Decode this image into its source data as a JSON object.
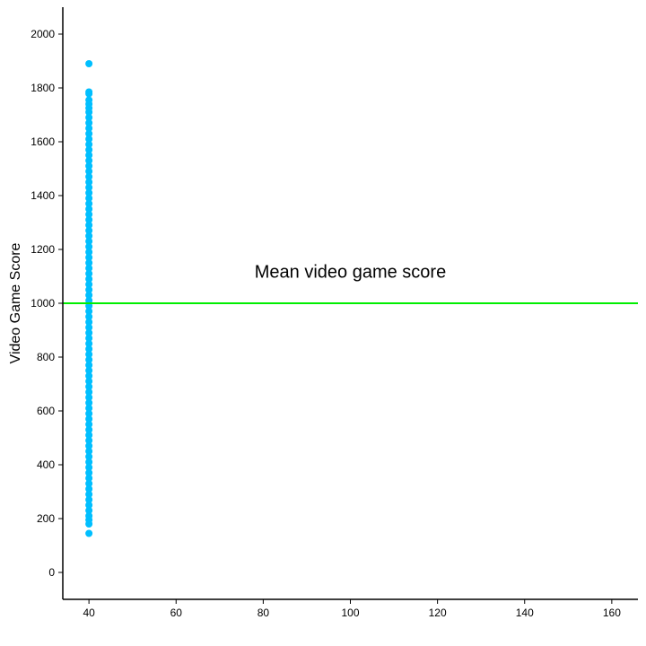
{
  "colors": {
    "background": "#ffffff",
    "points": "#00bfff",
    "reference_line": "#00ee00",
    "axis": "#000000"
  },
  "chart_data": {
    "type": "scatter",
    "title": "",
    "xlabel": "",
    "ylabel": "Video Game Score",
    "xlim": [
      34,
      166
    ],
    "ylim": [
      -100,
      2100
    ],
    "x_ticks": [
      40,
      60,
      80,
      100,
      120,
      140,
      160
    ],
    "y_ticks": [
      0,
      200,
      400,
      600,
      800,
      1000,
      1200,
      1400,
      1600,
      1800,
      2000
    ],
    "grid": false,
    "legend": "none",
    "series": [
      {
        "points": [
          {
            "x": 40,
            "y": 1890
          },
          {
            "x": 40,
            "y": 1785
          },
          {
            "x": 40,
            "y": 1778
          },
          {
            "x": 40,
            "y": 1755
          },
          {
            "x": 40,
            "y": 1740
          },
          {
            "x": 40,
            "y": 1725
          },
          {
            "x": 40,
            "y": 1710
          },
          {
            "x": 40,
            "y": 1690
          },
          {
            "x": 40,
            "y": 1670
          },
          {
            "x": 40,
            "y": 1650
          },
          {
            "x": 40,
            "y": 1630
          },
          {
            "x": 40,
            "y": 1610
          },
          {
            "x": 40,
            "y": 1590
          },
          {
            "x": 40,
            "y": 1570
          },
          {
            "x": 40,
            "y": 1550
          },
          {
            "x": 40,
            "y": 1530
          },
          {
            "x": 40,
            "y": 1510
          },
          {
            "x": 40,
            "y": 1490
          },
          {
            "x": 40,
            "y": 1470
          },
          {
            "x": 40,
            "y": 1450
          },
          {
            "x": 40,
            "y": 1430
          },
          {
            "x": 40,
            "y": 1410
          },
          {
            "x": 40,
            "y": 1390
          },
          {
            "x": 40,
            "y": 1370
          },
          {
            "x": 40,
            "y": 1350
          },
          {
            "x": 40,
            "y": 1330
          },
          {
            "x": 40,
            "y": 1310
          },
          {
            "x": 40,
            "y": 1290
          },
          {
            "x": 40,
            "y": 1270
          },
          {
            "x": 40,
            "y": 1250
          },
          {
            "x": 40,
            "y": 1230
          },
          {
            "x": 40,
            "y": 1210
          },
          {
            "x": 40,
            "y": 1190
          },
          {
            "x": 40,
            "y": 1170
          },
          {
            "x": 40,
            "y": 1150
          },
          {
            "x": 40,
            "y": 1130
          },
          {
            "x": 40,
            "y": 1110
          },
          {
            "x": 40,
            "y": 1090
          },
          {
            "x": 40,
            "y": 1070
          },
          {
            "x": 40,
            "y": 1050
          },
          {
            "x": 40,
            "y": 1030
          },
          {
            "x": 40,
            "y": 1010
          },
          {
            "x": 40,
            "y": 990
          },
          {
            "x": 40,
            "y": 970
          },
          {
            "x": 40,
            "y": 950
          },
          {
            "x": 40,
            "y": 930
          },
          {
            "x": 40,
            "y": 910
          },
          {
            "x": 40,
            "y": 890
          },
          {
            "x": 40,
            "y": 870
          },
          {
            "x": 40,
            "y": 850
          },
          {
            "x": 40,
            "y": 830
          },
          {
            "x": 40,
            "y": 810
          },
          {
            "x": 40,
            "y": 790
          },
          {
            "x": 40,
            "y": 770
          },
          {
            "x": 40,
            "y": 750
          },
          {
            "x": 40,
            "y": 730
          },
          {
            "x": 40,
            "y": 710
          },
          {
            "x": 40,
            "y": 690
          },
          {
            "x": 40,
            "y": 670
          },
          {
            "x": 40,
            "y": 650
          },
          {
            "x": 40,
            "y": 630
          },
          {
            "x": 40,
            "y": 610
          },
          {
            "x": 40,
            "y": 590
          },
          {
            "x": 40,
            "y": 570
          },
          {
            "x": 40,
            "y": 550
          },
          {
            "x": 40,
            "y": 530
          },
          {
            "x": 40,
            "y": 510
          },
          {
            "x": 40,
            "y": 490
          },
          {
            "x": 40,
            "y": 470
          },
          {
            "x": 40,
            "y": 450
          },
          {
            "x": 40,
            "y": 430
          },
          {
            "x": 40,
            "y": 410
          },
          {
            "x": 40,
            "y": 390
          },
          {
            "x": 40,
            "y": 370
          },
          {
            "x": 40,
            "y": 350
          },
          {
            "x": 40,
            "y": 330
          },
          {
            "x": 40,
            "y": 310
          },
          {
            "x": 40,
            "y": 290
          },
          {
            "x": 40,
            "y": 270
          },
          {
            "x": 40,
            "y": 250
          },
          {
            "x": 40,
            "y": 230
          },
          {
            "x": 40,
            "y": 210
          },
          {
            "x": 40,
            "y": 195
          },
          {
            "x": 40,
            "y": 180
          },
          {
            "x": 40,
            "y": 145
          }
        ]
      }
    ],
    "reference_line": {
      "y": 1000
    },
    "annotations": [
      {
        "text": "Mean video game score",
        "x": 100,
        "y": 1095
      }
    ]
  }
}
